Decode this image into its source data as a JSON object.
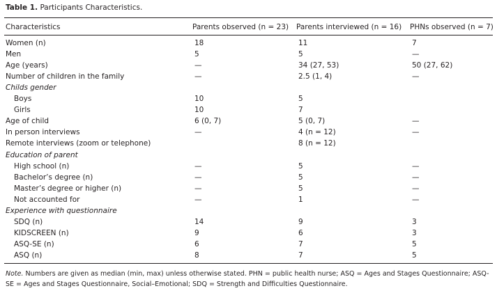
{
  "table": {
    "title": {
      "label": "Table 1.",
      "text": "Participants Characteristics."
    },
    "header": [
      "Characteristics",
      "Parents observed (n = 23)",
      "Parents interviewed (n = 16)",
      "PHNs observed (n = 7)"
    ],
    "rows": [
      [
        "Women (n)",
        "18",
        "11",
        "7"
      ],
      [
        "Men",
        "5",
        "5",
        "—"
      ],
      [
        "Age (years)",
        "—",
        "34 (27, 53)",
        "50 (27, 62)"
      ],
      [
        "Number of children in the family",
        "—",
        "2.5 (1, 4)",
        "—"
      ],
      [
        "Childs gender"
      ],
      [
        "Boys",
        "10",
        "5",
        null
      ],
      [
        "Girls",
        "10",
        "7",
        null
      ],
      [
        "Age of child",
        "6 (0, 7)",
        "5 (0, 7)",
        "—"
      ],
      [
        "In person interviews",
        "—",
        "4 (n = 12)",
        "—"
      ],
      [
        "Remote interviews (zoom or telephone)",
        null,
        "8 (n = 12)",
        null
      ],
      [
        "Education of parent"
      ],
      [
        "High school (n)",
        "—",
        "5",
        "—"
      ],
      [
        "Bachelor’s degree (n)",
        "—",
        "5",
        "—"
      ],
      [
        "Master’s degree or higher (n)",
        "—",
        "5",
        "—"
      ],
      [
        "Not accounted for",
        "—",
        "1",
        "—"
      ],
      [
        "Experience with questionnaire"
      ],
      [
        "SDQ (n)",
        "14",
        "9",
        "3"
      ],
      [
        "KIDSCREEN (n)",
        "9",
        "6",
        "3"
      ],
      [
        "ASQ-SE (n)",
        "6",
        "7",
        "5"
      ],
      [
        "ASQ (n)",
        "8",
        "7",
        "5"
      ]
    ],
    "note": {
      "label": "Note.",
      "text": "Numbers are given as median (min, max) unless otherwise stated. PHN = public health nurse; ASQ = Ages and Stages Questionnaire; ASQ-SE = Ages and Stages Questionnaire, Social–Emotional; SDQ = Strength and Difficulties Questionnaire."
    }
  }
}
